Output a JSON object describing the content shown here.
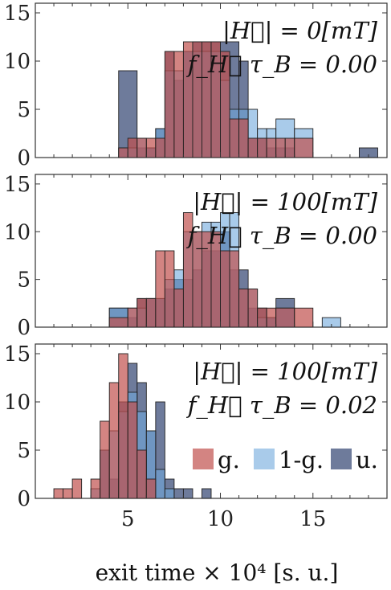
{
  "colors": {
    "g": "#c0504d",
    "one_minus_g": "#6fa8dc",
    "u": "#3d4f7a"
  },
  "chart_data": [
    {
      "type": "histogram",
      "annotation_line1": "|H⃗| = 0[mT]",
      "annotation_line2": "f_H⃗ τ_B = 0.00",
      "xlim": [
        0,
        19
      ],
      "ylim": [
        0,
        16
      ],
      "yticks": [
        0,
        5,
        10,
        15
      ],
      "series": [
        {
          "key": "u",
          "bins": [
            [
              4.5,
              5.5,
              9
            ],
            [
              5.5,
              6,
              1
            ],
            [
              6,
              6.5,
              1
            ],
            [
              6.5,
              7,
              3
            ],
            [
              7,
              7.5,
              11
            ],
            [
              7.5,
              8,
              8
            ],
            [
              8,
              8.5,
              11
            ],
            [
              8.5,
              9,
              12
            ],
            [
              9,
              9.5,
              12
            ],
            [
              9.5,
              10,
              12
            ],
            [
              10,
              11,
              12
            ],
            [
              11,
              11.5,
              10
            ],
            [
              11.5,
              12,
              2
            ],
            [
              12,
              12.5,
              2
            ],
            [
              12.5,
              13,
              1
            ],
            [
              13,
              13.5,
              1
            ],
            [
              13.5,
              14,
              1
            ],
            [
              17.5,
              18.5,
              1
            ]
          ]
        },
        {
          "key": "one_minus_g",
          "bins": [
            [
              4.5,
              5.5,
              1
            ],
            [
              5.5,
              6,
              2
            ],
            [
              6,
              6.5,
              1
            ],
            [
              6.5,
              7,
              3
            ],
            [
              7,
              7.5,
              9
            ],
            [
              7.5,
              8,
              9
            ],
            [
              8,
              8.5,
              11
            ],
            [
              8.5,
              9,
              11
            ],
            [
              9,
              9.5,
              11
            ],
            [
              9.5,
              10,
              11
            ],
            [
              10,
              10.5,
              8
            ],
            [
              10.5,
              11,
              5
            ],
            [
              11,
              11.5,
              5
            ],
            [
              11.5,
              12,
              5
            ],
            [
              12,
              12.5,
              3
            ],
            [
              12.5,
              13,
              3
            ],
            [
              13,
              14,
              4
            ],
            [
              14,
              15,
              3
            ]
          ]
        },
        {
          "key": "g",
          "bins": [
            [
              4.5,
              5,
              1
            ],
            [
              5,
              5.5,
              2
            ],
            [
              5.5,
              6,
              2
            ],
            [
              6,
              6.5,
              2
            ],
            [
              6.5,
              7,
              2
            ],
            [
              7,
              7.5,
              11
            ],
            [
              7.5,
              8,
              11
            ],
            [
              8,
              8.5,
              12
            ],
            [
              8.5,
              9,
              12
            ],
            [
              9,
              9.5,
              12
            ],
            [
              9.5,
              10,
              12
            ],
            [
              10,
              10.5,
              11
            ],
            [
              10.5,
              11,
              4
            ],
            [
              11,
              11.5,
              4
            ],
            [
              11.5,
              12,
              2
            ],
            [
              12,
              12.5,
              2
            ],
            [
              12.5,
              13,
              2
            ],
            [
              13,
              13.5,
              2
            ],
            [
              13.5,
              14,
              2
            ],
            [
              14,
              15,
              2
            ]
          ]
        }
      ]
    },
    {
      "type": "histogram",
      "annotation_line1": "|H⃗| = 100[mT]",
      "annotation_line2": "f_H⃗ τ_B = 0.00",
      "xlim": [
        0,
        19
      ],
      "ylim": [
        0,
        16
      ],
      "yticks": [
        0,
        5,
        10,
        15
      ],
      "series": [
        {
          "key": "u",
          "bins": [
            [
              4,
              5,
              2
            ],
            [
              5,
              5.5,
              1
            ],
            [
              5.5,
              6,
              3
            ],
            [
              6,
              6.5,
              3
            ],
            [
              6.5,
              7,
              3
            ],
            [
              7,
              7.5,
              4
            ],
            [
              7.5,
              8,
              5
            ],
            [
              8,
              8.5,
              5
            ],
            [
              8.5,
              9,
              6
            ],
            [
              9,
              9.5,
              8
            ],
            [
              9.5,
              10,
              8
            ],
            [
              10,
              10.5,
              10
            ],
            [
              10.5,
              11,
              6
            ],
            [
              11,
              11.5,
              6
            ],
            [
              11.5,
              12,
              2
            ],
            [
              12,
              12.5,
              2
            ],
            [
              12.5,
              13,
              1
            ],
            [
              13,
              14,
              3
            ]
          ]
        },
        {
          "key": "one_minus_g",
          "bins": [
            [
              4,
              5,
              2
            ],
            [
              5,
              5.5,
              2
            ],
            [
              5.5,
              6,
              2
            ],
            [
              6,
              6.5,
              3
            ],
            [
              6.5,
              7,
              3
            ],
            [
              7,
              7.5,
              5
            ],
            [
              7.5,
              8,
              6
            ],
            [
              8,
              8.5,
              10
            ],
            [
              8.5,
              9,
              10
            ],
            [
              9,
              9.5,
              11
            ],
            [
              9.5,
              10,
              11
            ],
            [
              10,
              10.5,
              12
            ],
            [
              10.5,
              11,
              12
            ],
            [
              11,
              11.5,
              4
            ],
            [
              11.5,
              12,
              4
            ],
            [
              12,
              12.5,
              1
            ],
            [
              12.5,
              13,
              1
            ],
            [
              13,
              14,
              2
            ],
            [
              15.5,
              16.5,
              1
            ]
          ]
        },
        {
          "key": "g",
          "bins": [
            [
              4,
              5,
              1
            ],
            [
              5,
              5.5,
              2
            ],
            [
              5.5,
              6,
              3
            ],
            [
              6,
              6.5,
              3
            ],
            [
              6.5,
              7,
              8
            ],
            [
              7,
              7.5,
              8
            ],
            [
              7.5,
              8,
              4
            ],
            [
              8,
              8.5,
              12
            ],
            [
              8.5,
              9,
              10
            ],
            [
              9,
              9.5,
              10
            ],
            [
              9.5,
              10,
              10
            ],
            [
              10,
              10.5,
              8
            ],
            [
              10.5,
              11,
              8
            ],
            [
              11,
              11.5,
              4
            ],
            [
              11.5,
              12,
              4
            ],
            [
              12,
              12.5,
              2
            ],
            [
              12.5,
              13,
              2
            ],
            [
              13,
              14,
              2
            ],
            [
              14,
              15,
              2
            ]
          ]
        }
      ]
    },
    {
      "type": "histogram",
      "annotation_line1": "|H⃗| = 100[mT]",
      "annotation_line2": "f_H⃗ τ_B = 0.02",
      "xlim": [
        0,
        19
      ],
      "ylim": [
        0,
        16
      ],
      "xticks": [
        5,
        10,
        15
      ],
      "yticks": [
        0,
        5,
        10,
        15
      ],
      "xlabel": "exit time × 10⁴ [s. u.]",
      "legend": [
        {
          "key": "g",
          "label": "g."
        },
        {
          "key": "one_minus_g",
          "label": "1-g."
        },
        {
          "key": "u",
          "label": "u."
        }
      ],
      "legend_position": "bottom-right",
      "series": [
        {
          "key": "u",
          "bins": [
            [
              3.5,
              4,
              5
            ],
            [
              4,
              4.5,
              2
            ],
            [
              4.5,
              5,
              10
            ],
            [
              5,
              5.5,
              14
            ],
            [
              5.5,
              6,
              12
            ],
            [
              6,
              6.5,
              7
            ],
            [
              6.5,
              7,
              10
            ],
            [
              7,
              7.5,
              2
            ],
            [
              7.5,
              8,
              1
            ],
            [
              8,
              8.5,
              1
            ],
            [
              9,
              9.5,
              1
            ]
          ]
        },
        {
          "key": "one_minus_g",
          "bins": [
            [
              3,
              3.5,
              1
            ],
            [
              3.5,
              4,
              5
            ],
            [
              4,
              4.5,
              7
            ],
            [
              4.5,
              5,
              9
            ],
            [
              5,
              5.5,
              11
            ],
            [
              5.5,
              6,
              9
            ],
            [
              6,
              6.5,
              7
            ],
            [
              6.5,
              7,
              3
            ],
            [
              7,
              7.5,
              1
            ]
          ]
        },
        {
          "key": "g",
          "bins": [
            [
              1,
              1.5,
              1
            ],
            [
              1.5,
              2,
              1
            ],
            [
              2,
              2.5,
              2
            ],
            [
              2.5,
              3,
              0
            ],
            [
              3,
              3.5,
              2
            ],
            [
              3.5,
              4,
              8
            ],
            [
              4,
              4.5,
              12
            ],
            [
              4.5,
              5,
              15
            ],
            [
              5,
              5.5,
              10
            ],
            [
              5.5,
              6,
              5
            ],
            [
              6,
              6.5,
              2
            ]
          ]
        }
      ]
    }
  ]
}
